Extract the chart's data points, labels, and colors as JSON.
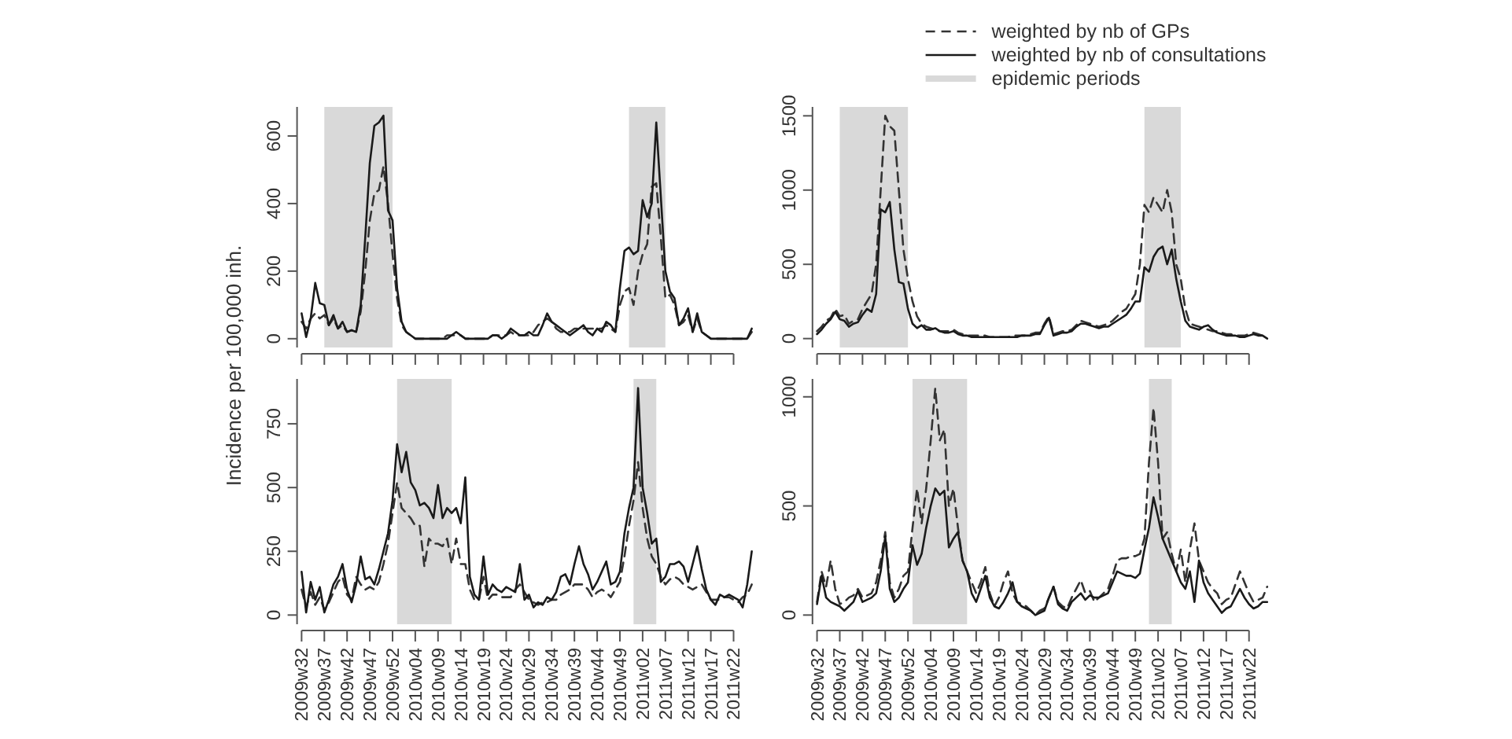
{
  "chart_data": [
    {
      "type": "line",
      "ylabel": "Incidence per 100,000 inh.",
      "ylim": [
        -26,
        686
      ],
      "yticks": [
        0,
        200,
        400,
        600
      ],
      "tick_labels": "y",
      "categories": [
        "2009w32",
        null,
        null,
        null,
        null,
        "2009w37",
        null,
        null,
        null,
        null,
        "2009w42",
        null,
        null,
        null,
        null,
        "2009w47",
        null,
        null,
        null,
        null,
        "2009w52",
        null,
        null,
        null,
        null,
        "2010w04",
        null,
        null,
        null,
        null,
        "2010w09",
        null,
        null,
        null,
        null,
        "2010w14",
        null,
        null,
        null,
        null,
        "2010w19",
        null,
        null,
        null,
        null,
        "2010w24",
        null,
        null,
        null,
        null,
        "2010w29",
        null,
        null,
        null,
        null,
        "2010w34",
        null,
        null,
        null,
        null,
        "2010w39",
        null,
        null,
        null,
        null,
        "2010w44",
        null,
        null,
        null,
        null,
        "2010w49",
        null,
        null,
        null,
        null,
        "2011w02",
        null,
        null,
        null,
        null,
        "2011w07",
        null,
        null,
        null,
        null,
        "2011w12",
        null,
        null,
        null,
        null,
        "2011w17",
        null,
        null,
        null,
        null,
        "2011w22",
        null,
        null,
        null,
        null
      ],
      "bands": [
        {
          "axis": "x",
          "from": "2009w37",
          "to": "2009w52",
          "color": "#d9d9d9"
        }
      ],
      "series": [
        {
          "color": "#333333",
          "line_style": "dashed",
          "values": [
            50,
            30,
            60,
            75,
            60,
            70,
            40,
            60,
            30,
            40,
            20,
            25,
            20,
            80,
            200,
            350,
            430,
            440,
            510,
            400,
            250,
            120,
            40,
            20,
            10,
            0,
            0,
            0,
            0,
            0,
            0,
            0,
            10,
            10,
            10,
            10,
            0,
            0,
            0,
            0,
            0,
            0,
            10,
            10,
            10,
            10,
            20,
            10,
            10,
            10,
            10,
            20,
            40,
            50,
            60,
            50,
            30,
            20,
            20,
            20,
            30,
            30,
            30,
            30,
            30,
            30,
            30,
            40,
            30,
            20,
            100,
            140,
            150,
            100,
            200,
            250,
            280,
            450,
            460,
            300,
            120,
            130,
            100,
            40,
            50,
            70,
            20,
            60,
            20,
            10,
            0,
            0,
            0,
            0,
            0,
            0,
            0,
            0,
            0,
            20
          ]
        },
        {
          "color": "#1a1a1a",
          "line_style": "solid",
          "values": [
            75,
            5,
            60,
            165,
            105,
            100,
            40,
            70,
            30,
            50,
            20,
            25,
            20,
            100,
            300,
            520,
            630,
            640,
            660,
            380,
            350,
            150,
            50,
            20,
            10,
            0,
            0,
            0,
            0,
            0,
            0,
            0,
            0,
            10,
            20,
            10,
            0,
            0,
            0,
            0,
            0,
            0,
            10,
            10,
            0,
            10,
            30,
            20,
            10,
            10,
            20,
            10,
            10,
            40,
            75,
            50,
            40,
            30,
            20,
            10,
            20,
            30,
            40,
            20,
            10,
            30,
            20,
            50,
            40,
            20,
            150,
            260,
            270,
            250,
            260,
            410,
            360,
            400,
            640,
            420,
            200,
            140,
            120,
            40,
            60,
            90,
            20,
            75,
            20,
            10,
            0,
            0,
            0,
            0,
            0,
            0,
            0,
            0,
            0,
            30
          ]
        }
      ]
    },
    {
      "type": "line",
      "legend": "top right",
      "ylim": [
        -60,
        1560
      ],
      "yticks": [
        0,
        500,
        1000,
        1500
      ],
      "tick_labels": "y",
      "categories": [
        "2009w32",
        null,
        null,
        null,
        null,
        "2009w37",
        null,
        null,
        null,
        null,
        "2009w42",
        null,
        null,
        null,
        null,
        "2009w47",
        null,
        null,
        null,
        null,
        "2009w52",
        null,
        null,
        null,
        null,
        "2010w04",
        null,
        null,
        null,
        null,
        "2010w09",
        null,
        null,
        null,
        null,
        "2010w14",
        null,
        null,
        null,
        null,
        "2010w19",
        null,
        null,
        null,
        null,
        "2010w24",
        null,
        null,
        null,
        null,
        "2010w29",
        null,
        null,
        null,
        null,
        "2010w34",
        null,
        null,
        null,
        null,
        "2010w39",
        null,
        null,
        null,
        null,
        "2010w44",
        null,
        null,
        null,
        null,
        "2010w49",
        null,
        null,
        null,
        null,
        "2011w02",
        null,
        null,
        null,
        null,
        "2011w07",
        null,
        null,
        null,
        null,
        "2011w12",
        null,
        null,
        null,
        null,
        "2011w17",
        null,
        null,
        null,
        null,
        "2011w22",
        null,
        null,
        null,
        null
      ],
      "bands": [
        {
          "axis": "x",
          "from": "2009w37",
          "to": "2009w52",
          "color": "#d9d9d9",
          "label": "epidemic periods"
        }
      ],
      "series": [
        {
          "name": "weighted by nb of GPs",
          "color": "#333333",
          "line_style": "dashed",
          "values": [
            50,
            80,
            120,
            140,
            200,
            150,
            160,
            100,
            120,
            130,
            200,
            250,
            300,
            500,
            1000,
            1500,
            1430,
            1400,
            1000,
            600,
            400,
            250,
            150,
            100,
            80,
            70,
            60,
            50,
            50,
            50,
            60,
            40,
            30,
            20,
            20,
            20,
            20,
            20,
            10,
            10,
            10,
            10,
            10,
            20,
            20,
            20,
            20,
            30,
            40,
            40,
            100,
            150,
            30,
            40,
            50,
            50,
            60,
            90,
            120,
            110,
            100,
            90,
            80,
            90,
            100,
            120,
            150,
            180,
            200,
            250,
            300,
            500,
            900,
            850,
            950,
            900,
            850,
            1000,
            850,
            500,
            400,
            200,
            100,
            90,
            80,
            70,
            60,
            50,
            50,
            40,
            30,
            30,
            20,
            20,
            20,
            30,
            40,
            30,
            20,
            10
          ]
        },
        {
          "name": "weighted by nb of consultations",
          "color": "#1a1a1a",
          "line_style": "solid",
          "values": [
            30,
            60,
            100,
            130,
            180,
            130,
            120,
            80,
            100,
            110,
            160,
            200,
            180,
            300,
            870,
            850,
            920,
            600,
            380,
            370,
            200,
            100,
            70,
            90,
            60,
            60,
            70,
            50,
            40,
            40,
            50,
            30,
            20,
            20,
            10,
            10,
            10,
            10,
            10,
            10,
            10,
            10,
            10,
            10,
            10,
            20,
            20,
            20,
            30,
            30,
            90,
            140,
            20,
            30,
            40,
            40,
            50,
            80,
            100,
            100,
            90,
            80,
            70,
            80,
            80,
            100,
            120,
            140,
            160,
            200,
            250,
            250,
            480,
            450,
            550,
            600,
            620,
            500,
            600,
            400,
            250,
            120,
            80,
            70,
            60,
            80,
            90,
            60,
            40,
            30,
            20,
            20,
            20,
            10,
            10,
            20,
            30,
            20,
            20,
            0
          ]
        }
      ]
    },
    {
      "type": "line",
      "ylim": [
        -36,
        926
      ],
      "yticks": [
        0,
        250,
        500,
        750
      ],
      "categories": [
        "2009w32",
        null,
        null,
        null,
        null,
        "2009w37",
        null,
        null,
        null,
        null,
        "2009w42",
        null,
        null,
        null,
        null,
        "2009w47",
        null,
        null,
        null,
        null,
        "2009w52",
        null,
        null,
        null,
        null,
        "2010w04",
        null,
        null,
        null,
        null,
        "2010w09",
        null,
        null,
        null,
        null,
        "2010w14",
        null,
        null,
        null,
        null,
        "2010w19",
        null,
        null,
        null,
        null,
        "2010w24",
        null,
        null,
        null,
        null,
        "2010w29",
        null,
        null,
        null,
        null,
        "2010w34",
        null,
        null,
        null,
        null,
        "2010w39",
        null,
        null,
        null,
        null,
        "2010w44",
        null,
        null,
        null,
        null,
        "2010w49",
        null,
        null,
        null,
        null,
        "2011w02",
        null,
        null,
        null,
        null,
        "2011w07",
        null,
        null,
        null,
        null,
        "2011w12",
        null,
        null,
        null,
        null,
        "2011w17",
        null,
        null,
        null,
        null,
        "2011w22",
        null,
        null,
        null,
        null
      ],
      "series": [
        {
          "color": "#333333",
          "line_style": "dashed",
          "values": [
            100,
            30,
            90,
            40,
            70,
            20,
            50,
            90,
            130,
            150,
            80,
            60,
            150,
            120,
            100,
            110,
            100,
            130,
            200,
            280,
            400,
            520,
            420,
            400,
            380,
            350,
            350,
            190,
            300,
            280,
            280,
            270,
            300,
            200,
            300,
            200,
            200,
            100,
            60,
            60,
            150,
            60,
            80,
            80,
            70,
            70,
            70,
            100,
            120,
            90,
            60,
            50,
            40,
            50,
            50,
            60,
            60,
            80,
            90,
            100,
            120,
            120,
            120,
            100,
            70,
            90,
            100,
            90,
            70,
            100,
            130,
            230,
            350,
            450,
            600,
            420,
            300,
            230,
            200,
            150,
            120,
            140,
            150,
            140,
            120,
            110,
            100,
            110,
            120,
            90,
            60,
            60,
            60,
            70,
            70,
            60,
            50,
            70,
            80,
            120
          ]
        },
        {
          "color": "#1a1a1a",
          "line_style": "solid",
          "values": [
            170,
            10,
            130,
            60,
            110,
            10,
            60,
            120,
            150,
            200,
            100,
            50,
            120,
            230,
            140,
            150,
            120,
            180,
            250,
            320,
            450,
            670,
            560,
            640,
            520,
            490,
            430,
            440,
            420,
            380,
            510,
            380,
            420,
            400,
            420,
            360,
            540,
            150,
            80,
            60,
            230,
            80,
            120,
            100,
            90,
            110,
            100,
            90,
            200,
            60,
            80,
            30,
            50,
            40,
            70,
            60,
            90,
            150,
            160,
            120,
            200,
            270,
            200,
            160,
            100,
            130,
            170,
            210,
            120,
            130,
            170,
            320,
            420,
            500,
            890,
            500,
            400,
            280,
            300,
            130,
            150,
            200,
            200,
            210,
            190,
            130,
            200,
            270,
            180,
            100,
            60,
            40,
            80,
            70,
            80,
            70,
            60,
            30,
            120,
            250
          ]
        }
      ]
    },
    {
      "type": "line",
      "ylim": [
        -42,
        1082
      ],
      "yticks": [
        0,
        500,
        1000
      ],
      "categories": [
        "2009w32",
        null,
        null,
        null,
        null,
        "2009w37",
        null,
        null,
        null,
        null,
        "2009w42",
        null,
        null,
        null,
        null,
        "2009w47",
        null,
        null,
        null,
        null,
        "2009w52",
        null,
        null,
        null,
        null,
        "2010w04",
        null,
        null,
        null,
        null,
        "2010w09",
        null,
        null,
        null,
        null,
        "2010w14",
        null,
        null,
        null,
        null,
        "2010w19",
        null,
        null,
        null,
        null,
        "2010w24",
        null,
        null,
        null,
        null,
        "2010w29",
        null,
        null,
        null,
        null,
        "2010w34",
        null,
        null,
        null,
        null,
        "2010w39",
        null,
        null,
        null,
        null,
        "2010w44",
        null,
        null,
        null,
        null,
        "2010w49",
        null,
        null,
        null,
        null,
        "2011w02",
        null,
        null,
        null,
        null,
        "2011w07",
        null,
        null,
        null,
        null,
        "2011w12",
        null,
        null,
        null,
        null,
        "2011w17",
        null,
        null,
        null,
        null,
        "2011w22",
        null,
        null,
        null,
        null
      ],
      "series": [
        {
          "color": "#333333",
          "line_style": "dashed",
          "values": [
            60,
            200,
            130,
            250,
            120,
            50,
            60,
            80,
            90,
            120,
            80,
            90,
            100,
            150,
            250,
            380,
            150,
            80,
            120,
            180,
            200,
            400,
            580,
            420,
            580,
            800,
            1040,
            800,
            850,
            500,
            580,
            400,
            250,
            200,
            150,
            100,
            150,
            220,
            100,
            40,
            80,
            150,
            200,
            100,
            60,
            50,
            40,
            20,
            0,
            20,
            30,
            80,
            130,
            60,
            40,
            30,
            80,
            120,
            160,
            100,
            110,
            60,
            80,
            100,
            120,
            180,
            250,
            260,
            260,
            270,
            270,
            280,
            350,
            700,
            950,
            700,
            350,
            380,
            280,
            200,
            300,
            150,
            300,
            420,
            250,
            200,
            150,
            120,
            100,
            50,
            70,
            80,
            140,
            200,
            150,
            100,
            60,
            70,
            80,
            130
          ]
        },
        {
          "color": "#1a1a1a",
          "line_style": "solid",
          "values": [
            50,
            180,
            80,
            60,
            50,
            40,
            20,
            40,
            60,
            110,
            60,
            70,
            80,
            100,
            200,
            360,
            120,
            60,
            80,
            120,
            150,
            320,
            230,
            280,
            400,
            500,
            580,
            550,
            570,
            310,
            350,
            380,
            250,
            200,
            100,
            60,
            120,
            180,
            80,
            40,
            30,
            60,
            100,
            150,
            60,
            40,
            30,
            20,
            0,
            10,
            20,
            80,
            130,
            50,
            30,
            20,
            60,
            80,
            100,
            70,
            90,
            80,
            80,
            90,
            100,
            150,
            200,
            190,
            180,
            180,
            170,
            190,
            300,
            400,
            540,
            450,
            350,
            300,
            250,
            200,
            150,
            120,
            200,
            60,
            250,
            150,
            100,
            70,
            40,
            10,
            30,
            40,
            80,
            120,
            80,
            50,
            30,
            40,
            60,
            60
          ]
        }
      ]
    }
  ]
}
